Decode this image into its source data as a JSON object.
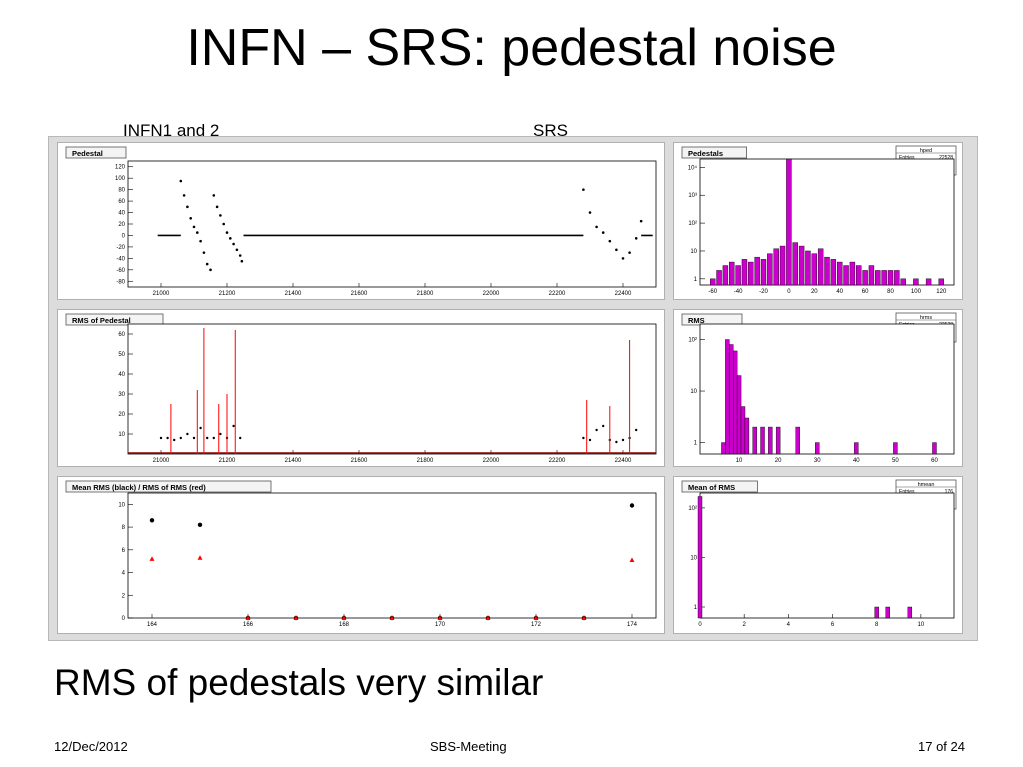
{
  "slide": {
    "title": "INFN – SRS: pedestal noise",
    "label_left": "INFN1 and 2",
    "label_right": "SRS",
    "subtitle": "RMS of pedestals very similar",
    "footer_date": "12/Dec/2012",
    "footer_center": "SBS-Meeting",
    "footer_page": "17 of 24"
  },
  "chart_data": [
    {
      "type": "scatter",
      "title": "Pedestal",
      "xlim": [
        20900,
        22500
      ],
      "ylim": [
        -90,
        130
      ],
      "xticks": [
        "21000",
        "21200",
        "21400",
        "21600",
        "21800",
        "22000",
        "22200",
        "22400"
      ],
      "yticks": [
        "-80",
        "-60",
        "-40",
        "-20",
        "0",
        "20",
        "40",
        "60",
        "80",
        "100",
        "120"
      ],
      "series": [
        {
          "color": "#000000",
          "segments": [
            {
              "x": [
                20990,
                21060
              ],
              "y": [
                0,
                0
              ]
            },
            {
              "x": [
                21250,
                22280
              ],
              "y": [
                0,
                0
              ]
            },
            {
              "x": [
                22455,
                22490
              ],
              "y": [
                0,
                0
              ]
            }
          ]
        },
        {
          "color": "#000000",
          "x": [
            21060,
            21070,
            21080,
            21090,
            21100,
            21110,
            21120,
            21130,
            21140,
            21150,
            21160,
            21170,
            21180,
            21190,
            21200,
            21210,
            21220,
            21230,
            21240,
            21245,
            22280,
            22300,
            22320,
            22340,
            22360,
            22380,
            22400,
            22420,
            22440,
            22455
          ],
          "y": [
            95,
            70,
            50,
            30,
            15,
            5,
            -10,
            -30,
            -50,
            -60,
            70,
            50,
            35,
            20,
            5,
            -5,
            -15,
            -25,
            -35,
            -45,
            80,
            40,
            15,
            5,
            -10,
            -25,
            -40,
            -30,
            -5,
            25
          ]
        }
      ],
      "grid": true
    },
    {
      "type": "bar",
      "title": "Pedestals",
      "legend": {
        "title": "hped",
        "Entries": "22528",
        "Mean": "-9.588e-17",
        "RMS": "4.488"
      },
      "xticks": [
        "-60",
        "-40",
        "-20",
        "0",
        "20",
        "40",
        "60",
        "80",
        "100",
        "120"
      ],
      "yticks": [
        "1",
        "10",
        "10²",
        "10³",
        "10⁴"
      ],
      "yscale": "log",
      "xlim": [
        -70,
        130
      ],
      "ylim": [
        0.6,
        20000
      ],
      "x": [
        -60,
        -55,
        -50,
        -45,
        -40,
        -35,
        -30,
        -25,
        -20,
        -15,
        -10,
        -5,
        0,
        5,
        10,
        15,
        20,
        25,
        30,
        35,
        40,
        45,
        50,
        55,
        60,
        65,
        70,
        75,
        80,
        85,
        90,
        100,
        110,
        120
      ],
      "values": [
        1,
        2,
        3,
        4,
        3,
        5,
        4,
        6,
        5,
        8,
        12,
        15,
        20000,
        20,
        15,
        10,
        8,
        12,
        6,
        5,
        4,
        3,
        4,
        3,
        2,
        3,
        2,
        2,
        2,
        2,
        1,
        1,
        1,
        1
      ],
      "color": "#cc00cc"
    },
    {
      "type": "scatter",
      "title": "RMS of Pedestal",
      "xlim": [
        20900,
        22500
      ],
      "ylim": [
        0,
        65
      ],
      "xticks": [
        "21000",
        "21200",
        "21400",
        "21600",
        "21800",
        "22000",
        "22200",
        "22400"
      ],
      "yticks": [
        "10",
        "20",
        "30",
        "40",
        "50",
        "60"
      ],
      "series": [
        {
          "color": "#000000",
          "x": [
            21000,
            21020,
            21040,
            21060,
            21080,
            21100,
            21120,
            21140,
            21160,
            21180,
            21200,
            21220,
            21240,
            22280,
            22300,
            22320,
            22340,
            22360,
            22380,
            22400,
            22420,
            22440
          ],
          "y": [
            8,
            8,
            7,
            8,
            10,
            8,
            13,
            8,
            8,
            10,
            8,
            14,
            8,
            8,
            7,
            12,
            14,
            7,
            6,
            7,
            8,
            12
          ]
        },
        {
          "color": "#ff0000",
          "spikes": {
            "x": [
              21030,
              21110,
              21130,
              21175,
              21200,
              21225,
              22290,
              22360,
              22420
            ],
            "y": [
              25,
              32,
              63,
              25,
              30,
              62,
              27,
              24,
              57
            ]
          }
        }
      ],
      "grid": true
    },
    {
      "type": "bar",
      "title": "RMS",
      "legend": {
        "title": "hrms",
        "Entries": "22528",
        "Mean": "8.066",
        "RMS": "5.344"
      },
      "xticks": [
        "10",
        "20",
        "30",
        "40",
        "50",
        "60"
      ],
      "yticks": [
        "1",
        "10",
        "10²"
      ],
      "yscale": "log",
      "xlim": [
        0,
        65
      ],
      "ylim": [
        0.6,
        200
      ],
      "x": [
        6,
        7,
        8,
        9,
        10,
        11,
        12,
        14,
        16,
        18,
        20,
        25,
        30,
        40,
        50,
        60
      ],
      "values": [
        1,
        100,
        80,
        60,
        20,
        5,
        3,
        2,
        2,
        2,
        2,
        2,
        1,
        1,
        1,
        1
      ],
      "color": "#cc00cc"
    },
    {
      "type": "scatter",
      "title": "Mean RMS (black) / RMS of RMS (red)",
      "xlim": [
        163.5,
        174.5
      ],
      "ylim": [
        0,
        11
      ],
      "xticks": [
        "164",
        "166",
        "168",
        "170",
        "172",
        "174"
      ],
      "yticks": [
        "0",
        "2",
        "4",
        "6",
        "8",
        "10"
      ],
      "series": [
        {
          "color": "#000000",
          "x": [
            164,
            165,
            166,
            167,
            168,
            169,
            170,
            171,
            172,
            173,
            174
          ],
          "y": [
            8.6,
            8.2,
            0,
            0,
            0,
            0,
            0,
            0,
            0,
            0,
            9.9
          ]
        },
        {
          "color": "#ff0000",
          "x": [
            164,
            165,
            166,
            167,
            168,
            169,
            170,
            171,
            172,
            173,
            174
          ],
          "y": [
            5.2,
            5.3,
            0,
            0,
            0,
            0,
            0,
            0,
            0,
            0,
            5.1
          ]
        }
      ]
    },
    {
      "type": "bar",
      "title": "Mean of RMS",
      "legend": {
        "title": "hmean",
        "Entries": "176",
        "Mean": "0.1511",
        "RMS": "1.191"
      },
      "xticks": [
        "0",
        "2",
        "4",
        "6",
        "8",
        "10"
      ],
      "yticks": [
        "1",
        "10",
        "10²"
      ],
      "yscale": "log",
      "xlim": [
        0,
        11.5
      ],
      "ylim": [
        0.6,
        200
      ],
      "x": [
        0,
        8,
        8.5,
        9.5
      ],
      "values": [
        170,
        1,
        1,
        1
      ],
      "color": "#cc00cc"
    }
  ]
}
